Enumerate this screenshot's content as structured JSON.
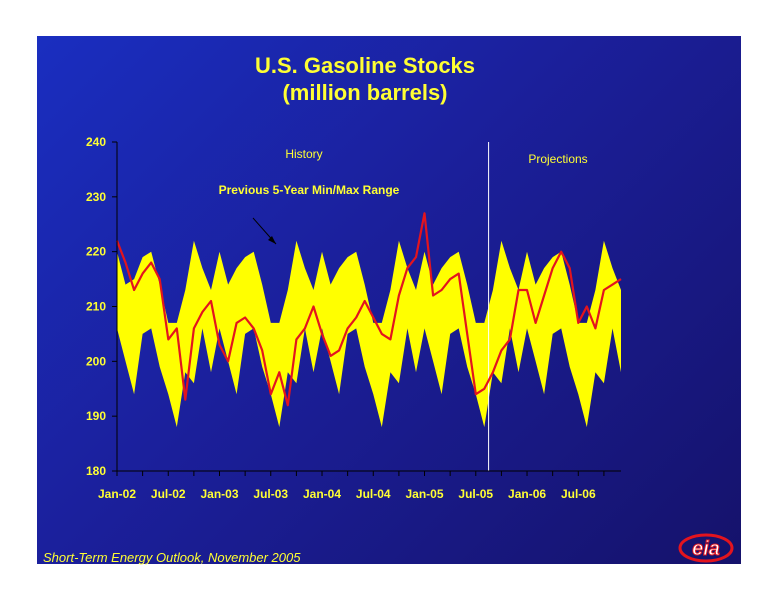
{
  "title_line1": "U.S. Gasoline Stocks",
  "title_line2": "(million barrels)",
  "footer": "Short-Term Energy Outlook, November 2005",
  "logo_text": "eia",
  "colors": {
    "background_light": "#1a2ec0",
    "background_dark": "#15126b",
    "text": "#ffff33",
    "band": "#ffff00",
    "line": "#e3141e",
    "axis": "#000000"
  },
  "chart_data": {
    "type": "area",
    "ylim": [
      180,
      240
    ],
    "yticks": [
      180,
      190,
      200,
      210,
      220,
      230,
      240
    ],
    "xtick_labels": [
      "Jan-02",
      "Jul-02",
      "Jan-03",
      "Jul-03",
      "Jan-04",
      "Jul-04",
      "Jan-05",
      "Jul-05",
      "Jan-06",
      "Jul-06"
    ],
    "xtick_indices": [
      0,
      6,
      12,
      18,
      24,
      30,
      36,
      42,
      48,
      54
    ],
    "x_count": 60,
    "annotations": {
      "history": "History",
      "projections": "Projections",
      "range": "Previous 5-Year Min/Max Range"
    },
    "projection_start_index": 43.5,
    "range_upper": [
      220,
      214,
      215,
      219,
      220,
      214,
      207,
      207,
      213,
      222,
      217,
      213,
      220,
      214,
      217,
      219,
      220,
      214,
      207,
      207,
      213,
      222,
      217,
      213,
      220,
      214,
      217,
      219,
      220,
      214,
      207,
      207,
      213,
      222,
      217,
      213,
      220,
      214,
      217,
      219,
      220,
      214,
      207,
      207,
      213,
      222,
      217,
      213,
      220,
      214,
      217,
      219,
      220,
      214,
      207,
      207,
      213,
      222,
      217,
      213
    ],
    "range_lower": [
      206,
      200,
      194,
      205,
      206,
      199,
      194,
      188,
      198,
      196,
      206,
      198,
      206,
      200,
      194,
      205,
      206,
      199,
      194,
      188,
      198,
      196,
      206,
      198,
      206,
      200,
      194,
      205,
      206,
      199,
      194,
      188,
      198,
      196,
      206,
      198,
      206,
      200,
      194,
      205,
      206,
      199,
      194,
      188,
      198,
      196,
      206,
      198,
      206,
      200,
      194,
      205,
      206,
      199,
      194,
      188,
      198,
      196,
      206,
      198
    ],
    "series": [
      {
        "values": [
          222,
          218,
          213,
          216,
          218,
          215,
          204,
          206,
          193,
          206,
          209,
          211,
          203,
          200,
          207,
          208,
          206,
          202,
          194,
          198,
          192,
          204,
          206,
          210,
          205,
          201,
          202,
          206,
          208,
          211,
          208,
          205,
          204,
          212,
          217,
          219,
          227,
          212,
          213,
          215,
          216,
          205,
          194,
          195,
          198,
          202,
          204,
          213,
          213,
          207,
          212,
          217,
          220,
          217,
          207,
          210,
          206,
          213,
          214,
          215
        ]
      }
    ]
  }
}
